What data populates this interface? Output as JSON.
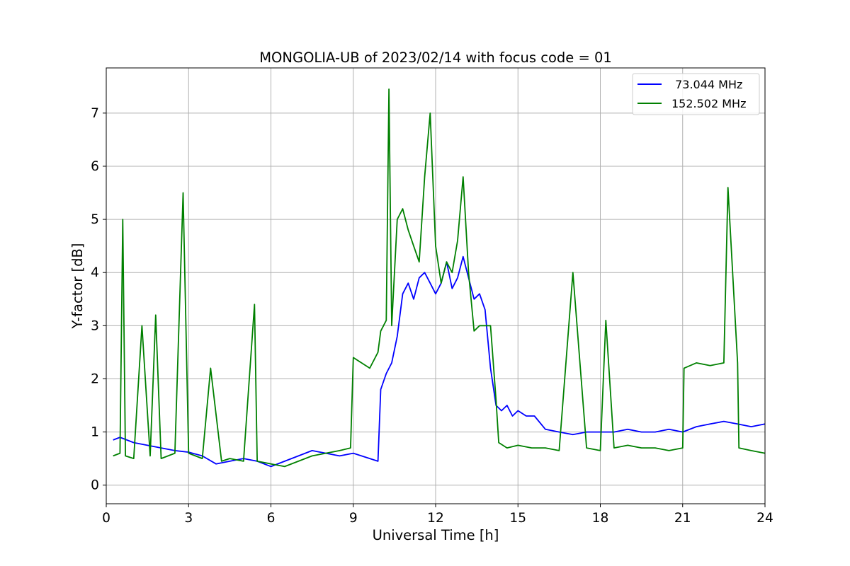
{
  "chart_data": {
    "type": "line",
    "title": "MONGOLIA-UB of 2023/02/14 with focus code = 01",
    "xlabel": "Universal Time [h]",
    "ylabel": "Y-factor [dB]",
    "xlim": [
      0,
      24
    ],
    "ylim": [
      -0.35,
      7.85
    ],
    "xticks": [
      0,
      3,
      6,
      9,
      12,
      15,
      18,
      21,
      24
    ],
    "xtick_labels": [
      "0",
      "3",
      "6",
      "9",
      "12",
      "15",
      "18",
      "21",
      "24"
    ],
    "yticks": [
      0,
      1,
      2,
      3,
      4,
      5,
      6,
      7
    ],
    "ytick_labels": [
      "0",
      "1",
      "2",
      "3",
      "4",
      "5",
      "6",
      "7"
    ],
    "grid": true,
    "legend_position": "top-right",
    "series": [
      {
        "name": " 73.044 MHz",
        "color": "#0000ff",
        "x": [
          0.25,
          0.5,
          1.0,
          1.5,
          2.0,
          2.5,
          3.0,
          3.5,
          4.0,
          4.5,
          5.0,
          5.5,
          6.0,
          6.5,
          7.0,
          7.5,
          8.0,
          8.5,
          9.0,
          9.3,
          9.6,
          9.9,
          10.0,
          10.2,
          10.4,
          10.6,
          10.8,
          11.0,
          11.2,
          11.4,
          11.6,
          11.8,
          12.0,
          12.2,
          12.4,
          12.6,
          12.8,
          13.0,
          13.2,
          13.4,
          13.6,
          13.8,
          14.0,
          14.2,
          14.4,
          14.6,
          14.8,
          15.0,
          15.3,
          15.6,
          16.0,
          16.5,
          17.0,
          17.5,
          18.0,
          18.5,
          19.0,
          19.5,
          20.0,
          20.5,
          21.0,
          21.5,
          22.0,
          22.5,
          23.0,
          23.5,
          24.0
        ],
        "y": [
          0.85,
          0.9,
          0.8,
          0.75,
          0.7,
          0.65,
          0.62,
          0.55,
          0.4,
          0.45,
          0.5,
          0.45,
          0.35,
          0.45,
          0.55,
          0.65,
          0.6,
          0.55,
          0.6,
          0.55,
          0.5,
          0.45,
          1.8,
          2.1,
          2.3,
          2.8,
          3.6,
          3.8,
          3.5,
          3.9,
          4.0,
          3.8,
          3.6,
          3.8,
          4.2,
          3.7,
          3.9,
          4.3,
          3.9,
          3.5,
          3.6,
          3.3,
          2.2,
          1.5,
          1.4,
          1.5,
          1.3,
          1.4,
          1.3,
          1.3,
          1.05,
          1.0,
          0.95,
          1.0,
          1.0,
          1.0,
          1.05,
          1.0,
          1.0,
          1.05,
          1.0,
          1.1,
          1.15,
          1.2,
          1.15,
          1.1,
          1.15
        ]
      },
      {
        "name": "152.502 MHz",
        "color": "#008000",
        "x": [
          0.25,
          0.5,
          0.6,
          0.7,
          1.0,
          1.3,
          1.6,
          1.8,
          2.0,
          2.5,
          2.8,
          3.0,
          3.5,
          3.8,
          4.2,
          4.5,
          5.0,
          5.4,
          5.5,
          6.0,
          6.5,
          7.0,
          7.5,
          8.0,
          8.5,
          8.9,
          9.0,
          9.3,
          9.6,
          9.9,
          10.0,
          10.2,
          10.3,
          10.4,
          10.6,
          10.8,
          11.0,
          11.2,
          11.4,
          11.6,
          11.8,
          12.0,
          12.2,
          12.4,
          12.6,
          12.8,
          13.0,
          13.2,
          13.4,
          13.6,
          13.8,
          14.0,
          14.2,
          14.3,
          14.6,
          15.0,
          15.5,
          16.0,
          16.5,
          17.0,
          17.5,
          18.0,
          18.2,
          18.5,
          19.0,
          19.5,
          20.0,
          20.5,
          21.0,
          21.05,
          21.5,
          22.0,
          22.5,
          22.65,
          23.0,
          23.05,
          23.5,
          24.0
        ],
        "y": [
          0.55,
          0.6,
          5.0,
          0.55,
          0.5,
          3.0,
          0.55,
          3.2,
          0.5,
          0.6,
          5.5,
          0.6,
          0.5,
          2.2,
          0.45,
          0.5,
          0.45,
          3.4,
          0.45,
          0.4,
          0.35,
          0.45,
          0.55,
          0.6,
          0.65,
          0.7,
          2.4,
          2.3,
          2.2,
          2.5,
          2.9,
          3.1,
          7.45,
          3.0,
          5.0,
          5.2,
          4.8,
          4.5,
          4.2,
          5.8,
          7.0,
          4.5,
          3.8,
          4.2,
          4.0,
          4.6,
          5.8,
          4.0,
          2.9,
          3.0,
          3.0,
          3.0,
          1.6,
          0.8,
          0.7,
          0.75,
          0.7,
          0.7,
          0.65,
          4.0,
          0.7,
          0.65,
          3.1,
          0.7,
          0.75,
          0.7,
          0.7,
          0.65,
          0.7,
          2.2,
          2.3,
          2.25,
          2.3,
          5.6,
          2.3,
          0.7,
          0.65,
          0.6
        ]
      }
    ]
  }
}
